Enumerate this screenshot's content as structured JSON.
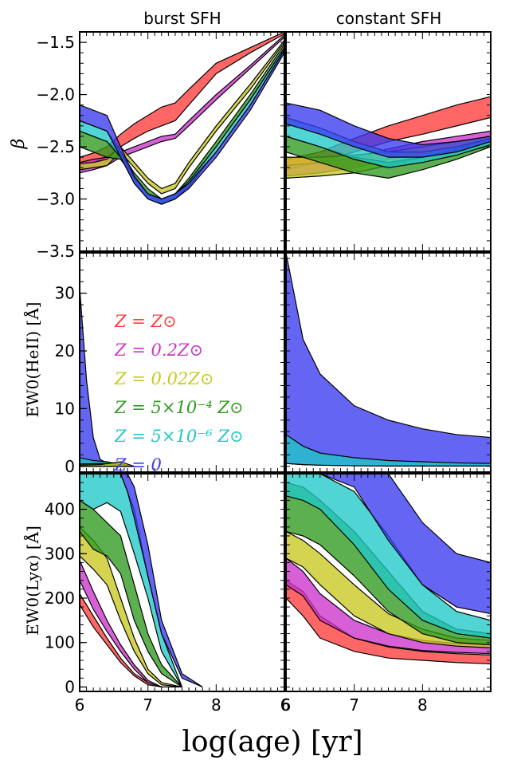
{
  "figure": {
    "xlabel": "log(age) [yr]"
  },
  "legend": [
    {
      "label": "Z = Z⊙",
      "color": "#ff3b3b"
    },
    {
      "label": "Z = 0.2Z⊙",
      "color": "#cc33cc"
    },
    {
      "label": "Z = 0.02Z⊙",
      "color": "#c8c820"
    },
    {
      "label": "Z = 5×10⁻⁴ Z⊙",
      "color": "#2e9a1e"
    },
    {
      "label": "Z = 5×10⁻⁶ Z⊙",
      "color": "#20c8c8"
    },
    {
      "label": "Z = 0",
      "color": "#3a3af0"
    }
  ],
  "chart_data": [
    {
      "type": "area",
      "panel": "beta-burst",
      "title": "burst SFH",
      "ylabel": "β",
      "xlim": [
        6,
        9
      ],
      "ylim": [
        -3.5,
        -1.4
      ],
      "yticks": [
        -3.5,
        -3.0,
        -2.5,
        -2.0,
        -1.5
      ],
      "series": [
        {
          "name": "Z = Z⊙",
          "color": "#ff3b3b",
          "x": [
            6,
            6.2,
            6.4,
            6.6,
            6.8,
            7,
            7.2,
            7.4,
            7.6,
            8,
            8.5,
            9
          ],
          "lo": [
            -2.68,
            -2.65,
            -2.6,
            -2.5,
            -2.42,
            -2.35,
            -2.3,
            -2.25,
            -2.1,
            -1.8,
            -1.6,
            -1.42
          ],
          "hi": [
            -2.6,
            -2.56,
            -2.5,
            -2.38,
            -2.28,
            -2.2,
            -2.12,
            -2.08,
            -1.95,
            -1.7,
            -1.55,
            -1.4
          ]
        },
        {
          "name": "Z = 0.2Z⊙",
          "color": "#cc33cc",
          "x": [
            6,
            6.2,
            6.4,
            6.6,
            6.8,
            7,
            7.2,
            7.4,
            7.6,
            8,
            8.5,
            9
          ],
          "lo": [
            -2.75,
            -2.72,
            -2.68,
            -2.6,
            -2.55,
            -2.5,
            -2.45,
            -2.42,
            -2.3,
            -2.05,
            -1.75,
            -1.45
          ],
          "hi": [
            -2.65,
            -2.62,
            -2.6,
            -2.55,
            -2.5,
            -2.45,
            -2.4,
            -2.38,
            -2.25,
            -2.0,
            -1.72,
            -1.43
          ]
        },
        {
          "name": "Z = 0.02Z⊙",
          "color": "#c8c820",
          "x": [
            6,
            6.2,
            6.4,
            6.6,
            6.8,
            7,
            7.2,
            7.4,
            7.6,
            8,
            8.5,
            9
          ],
          "lo": [
            -2.72,
            -2.7,
            -2.68,
            -2.55,
            -2.7,
            -2.85,
            -2.95,
            -2.9,
            -2.7,
            -2.35,
            -1.95,
            -1.5
          ],
          "hi": [
            -2.66,
            -2.65,
            -2.62,
            -2.5,
            -2.65,
            -2.8,
            -2.9,
            -2.85,
            -2.65,
            -2.3,
            -1.9,
            -1.48
          ]
        },
        {
          "name": "Z = 5×10⁻⁴ Z⊙",
          "color": "#2e9a1e",
          "x": [
            6,
            6.2,
            6.4,
            6.6,
            6.8,
            7,
            7.2,
            7.4,
            7.6,
            8,
            8.5,
            9
          ],
          "lo": [
            -2.5,
            -2.55,
            -2.6,
            -2.62,
            -2.8,
            -2.95,
            -3.05,
            -3.0,
            -2.85,
            -2.5,
            -2.05,
            -1.55
          ],
          "hi": [
            -2.35,
            -2.4,
            -2.45,
            -2.55,
            -2.75,
            -2.9,
            -3.0,
            -2.95,
            -2.8,
            -2.45,
            -2.0,
            -1.52
          ]
        },
        {
          "name": "Z = 5×10⁻⁶ Z⊙",
          "color": "#20c8c8",
          "x": [
            6,
            6.2,
            6.4,
            6.6,
            6.8,
            7,
            7.2,
            7.4,
            7.6,
            8,
            8.5,
            9
          ],
          "lo": [
            -2.35,
            -2.4,
            -2.45,
            -2.6,
            -2.85,
            -3.0,
            -3.05,
            -3.0,
            -2.88,
            -2.55,
            -2.1,
            -1.58
          ],
          "hi": [
            -2.25,
            -2.3,
            -2.35,
            -2.55,
            -2.8,
            -2.95,
            -3.0,
            -2.95,
            -2.83,
            -2.5,
            -2.05,
            -1.55
          ]
        },
        {
          "name": "Z = 0",
          "color": "#3a3af0",
          "x": [
            6,
            6.2,
            6.4,
            6.6,
            6.8,
            7,
            7.2,
            7.4,
            7.6,
            8,
            8.5,
            9
          ],
          "lo": [
            -2.25,
            -2.3,
            -2.35,
            -2.6,
            -2.85,
            -3.0,
            -3.05,
            -3.0,
            -2.9,
            -2.6,
            -2.15,
            -1.6
          ],
          "hi": [
            -2.1,
            -2.15,
            -2.2,
            -2.5,
            -2.78,
            -2.95,
            -3.0,
            -2.95,
            -2.85,
            -2.55,
            -2.1,
            -1.57
          ]
        }
      ]
    },
    {
      "type": "area",
      "panel": "beta-constant",
      "title": "constant SFH",
      "xlim": [
        6,
        9
      ],
      "ylim": [
        -3.5,
        -1.4
      ],
      "series": [
        {
          "name": "Z = Z⊙",
          "color": "#ff3b3b",
          "x": [
            6,
            6.5,
            7,
            7.5,
            8,
            8.5,
            9
          ],
          "lo": [
            -2.72,
            -2.65,
            -2.55,
            -2.45,
            -2.38,
            -2.3,
            -2.22
          ],
          "hi": [
            -2.62,
            -2.55,
            -2.42,
            -2.3,
            -2.2,
            -2.1,
            -2.02
          ]
        },
        {
          "name": "Z = 0.2Z⊙",
          "color": "#cc33cc",
          "x": [
            6,
            6.5,
            7,
            7.5,
            8,
            8.5,
            9
          ],
          "lo": [
            -2.78,
            -2.75,
            -2.7,
            -2.62,
            -2.55,
            -2.5,
            -2.45
          ],
          "hi": [
            -2.68,
            -2.65,
            -2.6,
            -2.52,
            -2.45,
            -2.4,
            -2.35
          ]
        },
        {
          "name": "Z = 0.02Z⊙",
          "color": "#c8c820",
          "x": [
            6,
            6.5,
            7,
            7.5,
            8,
            8.5,
            9
          ],
          "lo": [
            -2.8,
            -2.78,
            -2.75,
            -2.68,
            -2.6,
            -2.55,
            -2.5
          ],
          "hi": [
            -2.6,
            -2.6,
            -2.58,
            -2.55,
            -2.5,
            -2.45,
            -2.4
          ]
        },
        {
          "name": "Z = 5×10⁻⁴ Z⊙",
          "color": "#2e9a1e",
          "x": [
            6,
            6.5,
            7,
            7.5,
            8,
            8.5,
            9
          ],
          "lo": [
            -2.55,
            -2.65,
            -2.75,
            -2.8,
            -2.72,
            -2.62,
            -2.5
          ],
          "hi": [
            -2.4,
            -2.5,
            -2.6,
            -2.65,
            -2.6,
            -2.52,
            -2.42
          ]
        },
        {
          "name": "Z = 5×10⁻⁶ Z⊙",
          "color": "#20c8c8",
          "x": [
            6,
            6.5,
            7,
            7.5,
            8,
            8.5,
            9
          ],
          "lo": [
            -2.4,
            -2.5,
            -2.62,
            -2.7,
            -2.65,
            -2.58,
            -2.48
          ],
          "hi": [
            -2.22,
            -2.32,
            -2.45,
            -2.55,
            -2.55,
            -2.5,
            -2.42
          ]
        },
        {
          "name": "Z = 0",
          "color": "#3a3af0",
          "x": [
            6,
            6.5,
            7,
            7.5,
            8,
            8.5,
            9
          ],
          "lo": [
            -2.28,
            -2.38,
            -2.5,
            -2.6,
            -2.6,
            -2.55,
            -2.45
          ],
          "hi": [
            -2.08,
            -2.15,
            -2.3,
            -2.42,
            -2.48,
            -2.45,
            -2.4
          ]
        }
      ]
    },
    {
      "type": "area",
      "panel": "heii-burst",
      "ylabel": "EW0(HeII) [Å]",
      "xlim": [
        6,
        9
      ],
      "ylim": [
        -1,
        37
      ],
      "yticks": [
        0,
        10,
        20,
        30
      ],
      "series": [
        {
          "name": "Z = 0",
          "color": "#3a3af0",
          "x": [
            6,
            6.1,
            6.2,
            6.3,
            6.4,
            6.5,
            6.6,
            6.7
          ],
          "lo": [
            0,
            0,
            0,
            0,
            0,
            0,
            0,
            0
          ],
          "hi": [
            31,
            15,
            5,
            1.2,
            0.6,
            0.3,
            0.1,
            0
          ]
        },
        {
          "name": "Z = 5×10⁻⁶ Z⊙",
          "color": "#20c8c8",
          "x": [
            6,
            6.2,
            6.4,
            6.6,
            6.8
          ],
          "lo": [
            0,
            0,
            0,
            0,
            0
          ],
          "hi": [
            1.5,
            1.0,
            0.8,
            0.3,
            0
          ]
        },
        {
          "name": "Z = 5×10⁻⁴ Z⊙",
          "color": "#2e9a1e",
          "x": [
            6,
            6.3,
            6.6,
            6.8
          ],
          "lo": [
            0,
            0,
            0,
            0
          ],
          "hi": [
            0.4,
            0.5,
            0.4,
            0
          ]
        },
        {
          "name": "Z = 0.02Z⊙",
          "color": "#c8c820",
          "x": [
            6,
            6.3,
            6.6,
            6.8
          ],
          "lo": [
            0,
            0,
            0,
            0
          ],
          "hi": [
            0.2,
            0.3,
            0.8,
            0
          ]
        }
      ]
    },
    {
      "type": "area",
      "panel": "heii-constant",
      "xlim": [
        6,
        9
      ],
      "ylim": [
        -1,
        37
      ],
      "series": [
        {
          "name": "Z = 0",
          "color": "#3a3af0",
          "x": [
            6,
            6.25,
            6.5,
            7,
            7.5,
            8,
            8.5,
            9
          ],
          "lo": [
            0.5,
            0.3,
            0.2,
            0.1,
            0.1,
            0.1,
            0.1,
            0.1
          ],
          "hi": [
            37,
            22,
            16,
            10.5,
            8,
            6.5,
            5.5,
            5
          ]
        },
        {
          "name": "Z = 5×10⁻⁶ Z⊙",
          "color": "#20c8c8",
          "x": [
            6,
            6.25,
            6.5,
            7,
            7.5,
            8,
            8.5,
            9
          ],
          "lo": [
            0.5,
            0.3,
            0.2,
            0.1,
            0.05,
            0.05,
            0.05,
            0.05
          ],
          "hi": [
            5.5,
            3.5,
            2.3,
            1.5,
            1.0,
            0.8,
            0.6,
            0.5
          ]
        }
      ]
    },
    {
      "type": "area",
      "panel": "lya-burst",
      "ylabel": "EW0(Lyα) [Å]",
      "xlim": [
        6,
        9
      ],
      "ylim": [
        -10,
        480
      ],
      "yticks": [
        0,
        100,
        200,
        300,
        400
      ],
      "series": [
        {
          "name": "Z = Z⊙",
          "color": "#ff3b3b",
          "x": [
            6,
            6.2,
            6.4,
            6.6,
            6.8,
            7,
            7.2,
            7.5
          ],
          "lo": [
            185,
            135,
            95,
            55,
            25,
            5,
            0,
            0
          ],
          "hi": [
            210,
            160,
            110,
            65,
            30,
            10,
            0,
            0
          ]
        },
        {
          "name": "Z = 0.2Z⊙",
          "color": "#cc33cc",
          "x": [
            6,
            6.2,
            6.4,
            6.6,
            6.8,
            7,
            7.2,
            7.5
          ],
          "lo": [
            240,
            175,
            125,
            80,
            40,
            10,
            0,
            0
          ],
          "hi": [
            285,
            215,
            150,
            95,
            50,
            15,
            0,
            0
          ]
        },
        {
          "name": "Z = 0.02Z⊙",
          "color": "#c8c820",
          "x": [
            6,
            6.2,
            6.4,
            6.6,
            6.8,
            7,
            7.2,
            7.5
          ],
          "lo": [
            295,
            265,
            230,
            150,
            80,
            30,
            5,
            0
          ],
          "hi": [
            360,
            330,
            290,
            200,
            110,
            40,
            10,
            0
          ]
        },
        {
          "name": "Z = 5×10⁻⁴ Z⊙",
          "color": "#2e9a1e",
          "x": [
            6,
            6.2,
            6.4,
            6.6,
            6.8,
            7,
            7.2,
            7.5
          ],
          "lo": [
            350,
            310,
            295,
            255,
            150,
            80,
            30,
            0
          ],
          "hi": [
            420,
            400,
            370,
            340,
            230,
            120,
            50,
            0
          ]
        },
        {
          "name": "Z = 5×10⁻⁶ Z⊙",
          "color": "#20c8c8",
          "x": [
            6,
            6.2,
            6.4,
            6.6,
            6.8,
            7,
            7.2,
            7.5
          ],
          "lo": [
            420,
            400,
            415,
            395,
            300,
            200,
            80,
            0
          ],
          "hi": [
            480,
            480,
            480,
            480,
            400,
            250,
            120,
            0
          ]
        },
        {
          "name": "Z = 0",
          "color": "#3a3af0",
          "x": [
            6.6,
            6.7,
            6.8,
            7,
            7.2,
            7.5,
            7.8
          ],
          "lo": [
            480,
            440,
            380,
            250,
            120,
            20,
            0
          ],
          "hi": [
            480,
            480,
            450,
            320,
            150,
            30,
            0
          ]
        }
      ]
    },
    {
      "type": "area",
      "panel": "lya-constant",
      "xlim": [
        6,
        9
      ],
      "ylim": [
        -10,
        480
      ],
      "series": [
        {
          "name": "Z = Z⊙",
          "color": "#ff3b3b",
          "x": [
            6,
            6.25,
            6.5,
            7,
            7.5,
            8,
            8.5,
            9
          ],
          "lo": [
            200,
            160,
            110,
            80,
            65,
            60,
            55,
            52
          ],
          "hi": [
            240,
            215,
            160,
            110,
            90,
            80,
            75,
            72
          ]
        },
        {
          "name": "Z = 0.2Z⊙",
          "color": "#cc33cc",
          "x": [
            6,
            6.25,
            6.5,
            7,
            7.5,
            8,
            8.5,
            9
          ],
          "lo": [
            230,
            205,
            150,
            110,
            92,
            82,
            78,
            75
          ],
          "hi": [
            290,
            260,
            210,
            150,
            120,
            105,
            98,
            95
          ]
        },
        {
          "name": "Z = 0.02Z⊙",
          "color": "#c8c820",
          "x": [
            6,
            6.25,
            6.5,
            7,
            7.5,
            8,
            8.5,
            9
          ],
          "lo": [
            290,
            270,
            230,
            160,
            120,
            100,
            92,
            88
          ],
          "hi": [
            350,
            330,
            300,
            230,
            165,
            130,
            110,
            105
          ]
        },
        {
          "name": "Z = 5×10⁻⁴ Z⊙",
          "color": "#2e9a1e",
          "x": [
            6,
            6.25,
            6.5,
            7,
            7.5,
            8,
            8.5,
            9
          ],
          "lo": [
            350,
            340,
            320,
            250,
            170,
            120,
            100,
            95
          ],
          "hi": [
            460,
            450,
            420,
            350,
            260,
            170,
            130,
            120
          ]
        },
        {
          "name": "Z = 5×10⁻⁶ Z⊙",
          "color": "#20c8c8",
          "x": [
            6,
            6.25,
            6.5,
            7,
            7.5,
            8,
            8.5,
            9
          ],
          "lo": [
            430,
            420,
            400,
            320,
            220,
            150,
            120,
            110
          ],
          "hi": [
            480,
            480,
            480,
            440,
            340,
            230,
            170,
            150
          ]
        },
        {
          "name": "Z = 0",
          "color": "#3a3af0",
          "x": [
            6,
            6.5,
            7,
            7.5,
            8,
            8.5,
            9
          ],
          "lo": [
            480,
            480,
            450,
            330,
            230,
            180,
            165
          ],
          "hi": [
            480,
            480,
            480,
            480,
            370,
            300,
            280
          ]
        }
      ]
    }
  ]
}
